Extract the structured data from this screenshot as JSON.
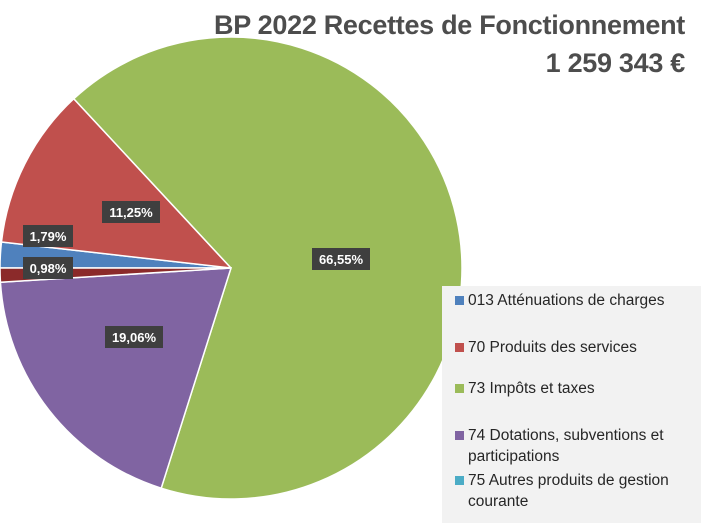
{
  "title": {
    "line1": "BP 2022 Recettes de Fonctionnement",
    "line2": "1 259 343 €"
  },
  "chart_data": {
    "type": "pie",
    "categories": [
      "013 Atténuations de charges",
      "70 Produits des services",
      "73 Impôts et taxes",
      "74 Dotations, subventions et participations",
      "75 Autres produits de gestion courante"
    ],
    "values": [
      1.79,
      11.25,
      66.55,
      19.06,
      0.98
    ],
    "data_labels": [
      "1,79%",
      "11,25%",
      "66,55%",
      "19,06%",
      "0,98%"
    ],
    "colors": [
      "#4f81bd",
      "#c0504d",
      "#9bbb59",
      "#8064a2",
      "#4bacc6"
    ],
    "slice_colors": [
      "#4f81bd",
      "#c0504d",
      "#9bbb59",
      "#8064a2",
      "#8b2a2a"
    ],
    "legend_position": "right"
  }
}
